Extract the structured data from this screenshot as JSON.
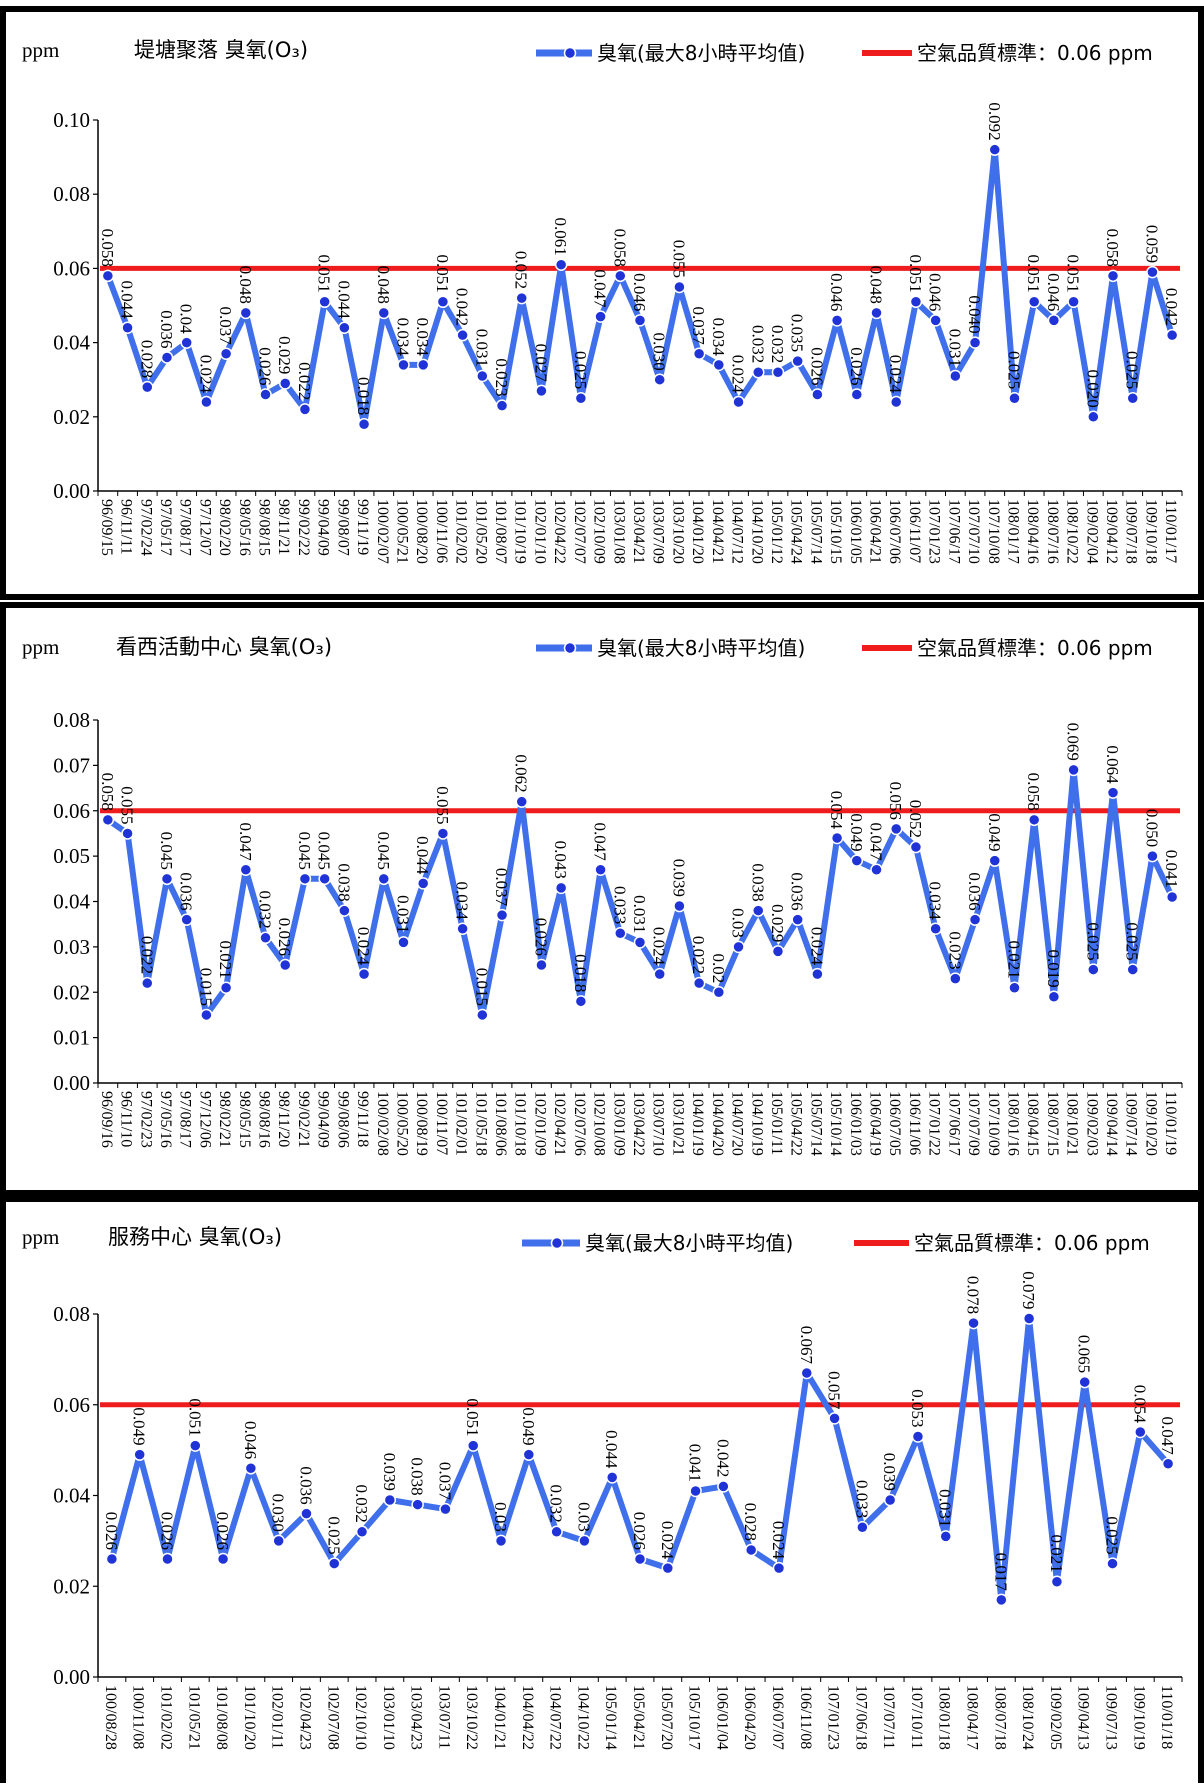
{
  "chart_data": [
    {
      "type": "line",
      "unit_label": "ppm",
      "title": "堤塘聚落 臭氧(O₃)",
      "legend": {
        "series_label": "臭氧(最大8小時平均值)",
        "standard_label": "空氣品質標準：0.06 ppm",
        "placement": "top-right"
      },
      "standard": 0.06,
      "ylim": [
        0,
        0.1
      ],
      "yticks": [
        "0.00",
        "0.02",
        "0.04",
        "0.06",
        "0.08",
        "0.10"
      ],
      "grid": false,
      "colors": {
        "series": "#3F6FEA",
        "marker": "#1F33D6",
        "standard": "#EE1C1C"
      },
      "x": [
        "96/09/15",
        "96/11/11",
        "97/02/24",
        "97/05/17",
        "97/08/17",
        "97/12/07",
        "98/02/20",
        "98/05/16",
        "98/08/15",
        "98/11/21",
        "99/02/22",
        "99/04/09",
        "99/08/07",
        "99/11/19",
        "100/02/07",
        "100/05/21",
        "100/08/20",
        "100/11/06",
        "101/02/02",
        "101/05/20",
        "101/08/07",
        "101/10/19",
        "102/01/10",
        "102/04/22",
        "102/07/07",
        "102/10/09",
        "103/01/08",
        "103/04/21",
        "103/07/09",
        "103/10/20",
        "104/01/20",
        "104/04/21",
        "104/07/12",
        "104/10/20",
        "105/01/12",
        "105/04/24",
        "105/07/14",
        "105/10/15",
        "106/01/05",
        "106/04/21",
        "106/07/06",
        "106/11/07",
        "107/01/23",
        "107/06/17",
        "107/07/10",
        "107/10/08",
        "108/01/17",
        "108/04/16",
        "108/07/16",
        "108/10/22",
        "109/02/04",
        "109/04/12",
        "109/07/18",
        "109/10/18",
        "110/01/17"
      ],
      "values": [
        0.058,
        0.044,
        0.028,
        0.036,
        0.04,
        0.024,
        0.037,
        0.048,
        0.026,
        0.029,
        0.022,
        0.051,
        0.044,
        0.018,
        0.048,
        0.034,
        0.034,
        0.051,
        0.042,
        0.031,
        0.023,
        0.052,
        0.027,
        0.061,
        0.025,
        0.047,
        0.058,
        0.046,
        0.03,
        0.055,
        0.037,
        0.034,
        0.024,
        0.032,
        0.032,
        0.035,
        0.026,
        0.046,
        0.026,
        0.048,
        0.024,
        0.051,
        0.046,
        0.031,
        0.04,
        0.092,
        0.025,
        0.051,
        0.046,
        0.051,
        0.02,
        0.058,
        0.025,
        0.059,
        0.042
      ],
      "labels": [
        "0.058",
        "0.044",
        "0.028",
        "0.036",
        "0.04",
        "0.024",
        "0.037",
        "0.048",
        "0.026",
        "0.029",
        "0.022",
        "0.051",
        "0.044",
        "0.018",
        "0.048",
        "0.034",
        "0.034",
        "0.051",
        "0.042",
        "0.031",
        "0.023",
        "0.052",
        "0.027",
        "0.061",
        "0.025",
        "0.047",
        "0.058",
        "0.046",
        "0.030",
        "0.055",
        "0.037",
        "0.034",
        "0.024",
        "0.032",
        "0.032",
        "0.035",
        "0.026",
        "0.046",
        "0.026",
        "0.048",
        "0.024",
        "0.051",
        "0.046",
        "0.031",
        "0.040",
        "0.092",
        "0.025",
        "0.051",
        "0.046",
        "0.051",
        "0.020",
        "0.058",
        "0.025",
        "0.059",
        "0.042"
      ]
    },
    {
      "type": "line",
      "unit_label": "ppm",
      "title": "看西活動中心 臭氧(O₃)",
      "legend": {
        "series_label": "臭氧(最大8小時平均值)",
        "standard_label": "空氣品質標準：0.06 ppm",
        "placement": "top-right"
      },
      "standard": 0.06,
      "ylim": [
        0,
        0.08
      ],
      "yticks": [
        "0.00",
        "0.01",
        "0.02",
        "0.03",
        "0.04",
        "0.05",
        "0.06",
        "0.07",
        "0.08"
      ],
      "grid": false,
      "colors": {
        "series": "#3F6FEA",
        "marker": "#1F33D6",
        "standard": "#EE1C1C"
      },
      "x": [
        "96/09/16",
        "96/11/10",
        "97/02/23",
        "97/05/16",
        "97/08/17",
        "97/12/06",
        "98/02/21",
        "98/05/15",
        "98/08/16",
        "98/11/20",
        "99/02/21",
        "99/04/09",
        "99/08/06",
        "99/11/18",
        "100/02/08",
        "100/05/20",
        "100/08/19",
        "100/11/07",
        "101/02/01",
        "101/05/18",
        "101/08/06",
        "101/10/18",
        "102/01/09",
        "102/04/21",
        "102/07/06",
        "102/10/08",
        "103/01/09",
        "103/04/22",
        "103/07/10",
        "103/10/21",
        "104/01/19",
        "104/04/20",
        "104/07/20",
        "104/10/19",
        "105/01/11",
        "105/04/22",
        "105/07/14",
        "105/10/14",
        "106/01/03",
        "106/04/19",
        "106/07/05",
        "106/11/06",
        "107/01/22",
        "107/06/17",
        "107/07/09",
        "107/10/09",
        "108/01/16",
        "108/04/15",
        "108/07/15",
        "108/10/21",
        "109/02/03",
        "109/04/14",
        "109/07/14",
        "109/10/20",
        "110/01/19"
      ],
      "values": [
        0.058,
        0.055,
        0.022,
        0.045,
        0.036,
        0.015,
        0.021,
        0.047,
        0.032,
        0.026,
        0.045,
        0.045,
        0.038,
        0.024,
        0.045,
        0.031,
        0.044,
        0.055,
        0.034,
        0.015,
        0.037,
        0.062,
        0.026,
        0.043,
        0.018,
        0.047,
        0.033,
        0.031,
        0.024,
        0.039,
        0.022,
        0.02,
        0.03,
        0.038,
        0.029,
        0.036,
        0.024,
        0.054,
        0.049,
        0.047,
        0.056,
        0.052,
        0.034,
        0.023,
        0.036,
        0.049,
        0.021,
        0.058,
        0.019,
        0.069,
        0.025,
        0.064,
        0.025,
        0.05,
        0.041
      ],
      "labels": [
        "0.058",
        "0.055",
        "0.022",
        "0.045",
        "0.036",
        "0.015",
        "0.021",
        "0.047",
        "0.032",
        "0.026",
        "0.045",
        "0.045",
        "0.038",
        "0.024",
        "0.045",
        "0.031",
        "0.044",
        "0.055",
        "0.034",
        "0.015",
        "0.037",
        "0.062",
        "0.026",
        "0.043",
        "0.018",
        "0.047",
        "0.033",
        "0.031",
        "0.024",
        "0.039",
        "0.022",
        "0.02",
        "0.03",
        "0.038",
        "0.029",
        "0.036",
        "0.024",
        "0.054",
        "0.049",
        "0.047",
        "0.056",
        "0.052",
        "0.034",
        "0.023",
        "0.036",
        "0.049",
        "0.021",
        "0.058",
        "0.019",
        "0.069",
        "0.025",
        "0.064",
        "0.025",
        "0.050",
        "0.041"
      ]
    },
    {
      "type": "line",
      "unit_label": "ppm",
      "title": "服務中心 臭氧(O₃)",
      "legend": {
        "series_label": "臭氧(最大8小時平均值)",
        "standard_label": "空氣品質標準：0.06 ppm",
        "placement": "top-right"
      },
      "standard": 0.06,
      "ylim": [
        0,
        0.08
      ],
      "yticks": [
        "0.00",
        "0.02",
        "0.04",
        "0.06",
        "0.08"
      ],
      "grid": false,
      "colors": {
        "series": "#3F6FEA",
        "marker": "#1F33D6",
        "standard": "#EE1C1C"
      },
      "x": [
        "100/08/28",
        "100/11/08",
        "101/02/02",
        "101/05/21",
        "101/08/08",
        "101/10/20",
        "102/01/11",
        "102/04/23",
        "102/07/08",
        "102/10/10",
        "103/01/10",
        "103/04/23",
        "103/07/11",
        "103/10/22",
        "104/01/21",
        "104/04/22",
        "104/07/22",
        "104/10/22",
        "105/01/14",
        "105/04/21",
        "105/07/20",
        "105/10/17",
        "106/01/04",
        "106/04/20",
        "106/07/07",
        "106/11/08",
        "107/01/23",
        "107/06/18",
        "107/07/11",
        "107/10/11",
        "108/01/18",
        "108/04/17",
        "108/07/18",
        "108/10/24",
        "109/02/05",
        "109/04/13",
        "109/07/13",
        "109/10/19",
        "110/01/18"
      ],
      "values": [
        0.026,
        0.049,
        0.026,
        0.051,
        0.026,
        0.046,
        0.03,
        0.036,
        0.025,
        0.032,
        0.039,
        0.038,
        0.037,
        0.051,
        0.03,
        0.049,
        0.032,
        0.03,
        0.044,
        0.026,
        0.024,
        0.041,
        0.042,
        0.028,
        0.024,
        0.067,
        0.057,
        0.033,
        0.039,
        0.053,
        0.031,
        0.078,
        0.017,
        0.079,
        0.021,
        0.065,
        0.025,
        0.054,
        0.047
      ],
      "labels": [
        "0.026",
        "0.049",
        "0.026",
        "0.051",
        "0.026",
        "0.046",
        "0.030",
        "0.036",
        "0.025",
        "0.032",
        "0.039",
        "0.038",
        "0.037",
        "0.051",
        "0.03",
        "0.049",
        "0.032",
        "0.03",
        "0.044",
        "0.026",
        "0.024",
        "0.041",
        "0.042",
        "0.028",
        "0.024",
        "0.067",
        "0.057",
        "0.033",
        "0.039",
        "0.053",
        "0.031",
        "0.078",
        "0.017",
        "0.079",
        "0.021",
        "0.065",
        "0.025",
        "0.054",
        "0.047"
      ]
    }
  ]
}
